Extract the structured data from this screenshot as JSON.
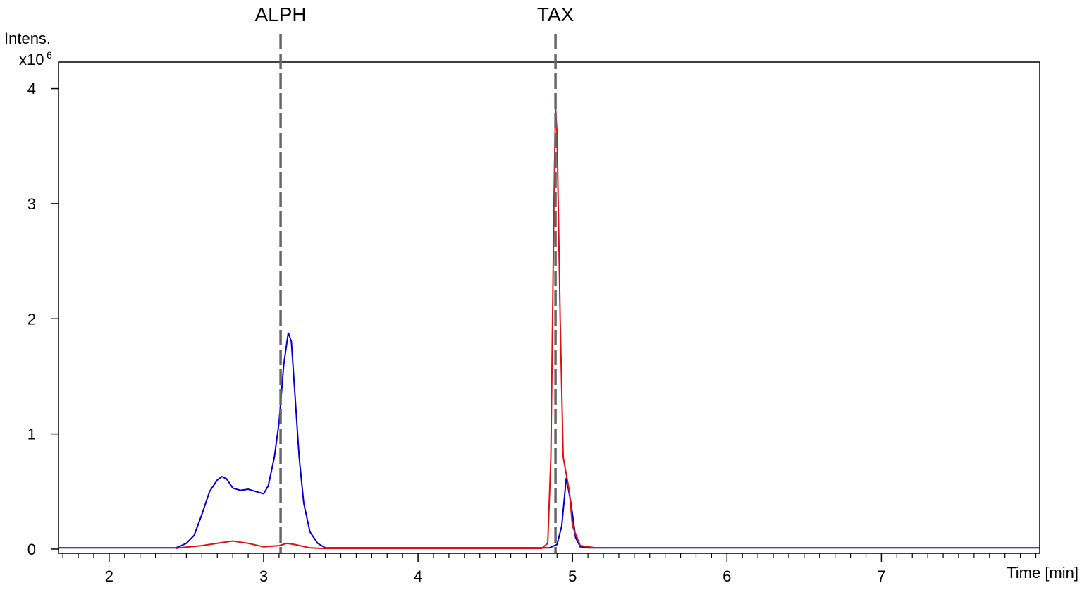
{
  "chart_data": {
    "type": "line",
    "y_label": "Intens.",
    "y_unit": "x10",
    "y_unit_exponent": "6",
    "x_label": "Time [min]",
    "xlim": [
      1.672,
      8.025
    ],
    "ylim": [
      -0.037,
      4.23
    ],
    "xticks": [
      2,
      3,
      4,
      5,
      6,
      7
    ],
    "xminorticks": [
      1.7,
      1.8,
      1.9,
      2.1,
      2.2,
      2.3,
      2.4,
      2.5,
      2.6,
      2.7,
      2.8,
      2.9,
      3.1,
      3.2,
      3.3,
      3.4,
      3.5,
      3.6,
      3.7,
      3.8,
      3.9,
      4.1,
      4.2,
      4.3,
      4.4,
      4.5,
      4.6,
      4.7,
      4.8,
      4.9,
      5.1,
      5.2,
      5.3,
      5.4,
      5.5,
      5.6,
      5.7,
      5.8,
      5.9,
      6.1,
      6.2,
      6.3,
      6.4,
      6.5,
      6.6,
      6.7,
      6.8,
      6.9,
      7.1,
      7.2,
      7.3,
      7.4,
      7.5,
      7.6,
      7.7,
      7.8,
      7.9,
      8.0
    ],
    "yticks": [
      0,
      1,
      2,
      3,
      4
    ],
    "annotations": [
      {
        "x": 3.11,
        "label": "ALPH"
      },
      {
        "x": 4.89,
        "label": "TAX"
      }
    ],
    "series": [
      {
        "color": "#0000cc",
        "x": [
          1.672,
          2.43,
          2.45,
          2.5,
          2.55,
          2.6,
          2.65,
          2.7,
          2.73,
          2.76,
          2.8,
          2.85,
          2.9,
          2.95,
          3.0,
          3.03,
          3.07,
          3.1,
          3.13,
          3.16,
          3.18,
          3.2,
          3.23,
          3.26,
          3.3,
          3.35,
          3.4,
          4.85,
          4.9,
          4.93,
          4.96,
          4.99,
          5.02,
          5.05,
          5.1,
          8.025
        ],
        "values": [
          0.01,
          0.01,
          0.02,
          0.05,
          0.12,
          0.3,
          0.5,
          0.6,
          0.63,
          0.61,
          0.53,
          0.51,
          0.52,
          0.5,
          0.48,
          0.55,
          0.8,
          1.1,
          1.6,
          1.88,
          1.8,
          1.4,
          0.8,
          0.4,
          0.15,
          0.05,
          0.01,
          0.01,
          0.04,
          0.2,
          0.62,
          0.4,
          0.1,
          0.02,
          0.01,
          0.01
        ]
      },
      {
        "color": "#dd1111",
        "x": [
          2.43,
          2.45,
          2.6,
          2.7,
          2.8,
          2.9,
          3.0,
          3.1,
          3.15,
          3.2,
          3.3,
          3.4,
          4.8,
          4.84,
          4.86,
          4.88,
          4.89,
          4.9,
          4.92,
          4.94,
          4.96,
          4.98,
          5.0,
          5.05,
          5.15
        ],
        "values": [
          0.005,
          0.01,
          0.03,
          0.05,
          0.07,
          0.05,
          0.02,
          0.03,
          0.05,
          0.04,
          0.01,
          0.005,
          0.005,
          0.05,
          0.8,
          3.0,
          3.85,
          3.6,
          2.0,
          0.8,
          0.65,
          0.5,
          0.2,
          0.03,
          0.01
        ]
      }
    ]
  }
}
